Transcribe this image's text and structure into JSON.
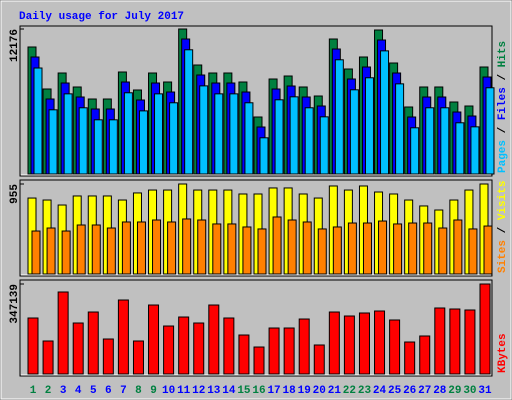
{
  "chart_data": [
    {
      "type": "bar",
      "title": "Daily usage for July 2017",
      "legend_separator": " / ",
      "ylim": [
        0,
        12176
      ],
      "yticks": [
        12176
      ],
      "series": [
        {
          "name": "Pages",
          "color": "#00c0ff",
          "values": [
            8900,
            5390,
            6730,
            5560,
            4550,
            4550,
            6820,
            5300,
            6730,
            5980,
            10430,
            7400,
            6730,
            6730,
            5980,
            3040,
            6230,
            6480,
            5560,
            4800,
            9590,
            7070,
            8080,
            10340,
            7570,
            3880,
            5560,
            5560,
            4300,
            3960,
            7240
          ]
        },
        {
          "name": "Files",
          "color": "#0000ff",
          "values": [
            9825,
            6298,
            7641,
            6466,
            5458,
            5458,
            7725,
            6214,
            7641,
            6885,
            11336,
            8313,
            7641,
            7641,
            6885,
            3946,
            7137,
            7389,
            6466,
            5710,
            10496,
            7977,
            8985,
            11252,
            8481,
            4786,
            6466,
            6466,
            5206,
            4870,
            8145
          ]
        },
        {
          "name": "Hits",
          "color": "#008040",
          "values": [
            10665,
            7138,
            8481,
            7306,
            6298,
            6298,
            8565,
            7054,
            8481,
            7725,
            12176,
            9153,
            8481,
            8481,
            7725,
            4786,
            7977,
            8229,
            7306,
            6550,
            11336,
            8817,
            9825,
            12092,
            9321,
            5626,
            7306,
            7306,
            6046,
            5710,
            8985
          ]
        }
      ]
    },
    {
      "type": "bar",
      "legend_separator": " / ",
      "ylim": [
        0,
        955
      ],
      "yticks": [
        955
      ],
      "series": [
        {
          "name": "Sites",
          "color": "#ff8000",
          "values": [
            456,
            488,
            456,
            520,
            520,
            488,
            552,
            552,
            573,
            552,
            584,
            573,
            531,
            531,
            499,
            478,
            605,
            573,
            552,
            478,
            499,
            541,
            541,
            562,
            531,
            541,
            541,
            488,
            573,
            478,
            509
          ]
        },
        {
          "name": "Visits",
          "color": "#ffff00",
          "values": [
            806,
            785,
            732,
            828,
            828,
            828,
            785,
            860,
            891,
            891,
            955,
            891,
            891,
            891,
            849,
            849,
            913,
            913,
            849,
            806,
            934,
            891,
            934,
            870,
            849,
            785,
            722,
            679,
            785,
            891,
            955
          ]
        }
      ]
    },
    {
      "type": "bar",
      "ylim": [
        0,
        347139
      ],
      "yticks": [
        347139
      ],
      "categories": [
        "1",
        "2",
        "3",
        "4",
        "5",
        "6",
        "7",
        "8",
        "9",
        "10",
        "11",
        "12",
        "13",
        "14",
        "15",
        "16",
        "17",
        "18",
        "19",
        "20",
        "21",
        "22",
        "23",
        "24",
        "25",
        "26",
        "27",
        "28",
        "29",
        "30",
        "31"
      ],
      "category_colors": [
        "#008040",
        "#008040",
        "#0000ff",
        "#0000ff",
        "#0000ff",
        "#0000ff",
        "#0000ff",
        "#008040",
        "#008040",
        "#0000ff",
        "#0000ff",
        "#0000ff",
        "#0000ff",
        "#0000ff",
        "#008040",
        "#008040",
        "#0000ff",
        "#0000ff",
        "#0000ff",
        "#0000ff",
        "#0000ff",
        "#008040",
        "#008040",
        "#0000ff",
        "#0000ff",
        "#0000ff",
        "#0000ff",
        "#0000ff",
        "#008040",
        "#008040",
        "#0000ff"
      ],
      "series": [
        {
          "name": "KBytes",
          "color": "#ff0000",
          "values": [
            216000,
            127300,
            316300,
            196700,
            239100,
            135000,
            285400,
            127300,
            266100,
            185100,
            219800,
            196700,
            266100,
            216000,
            150400,
            104100,
            177400,
            177400,
            212100,
            111900,
            239100,
            223700,
            235300,
            243000,
            208300,
            123400,
            146600,
            254600,
            250700,
            246900,
            347139
          ]
        }
      ]
    }
  ]
}
